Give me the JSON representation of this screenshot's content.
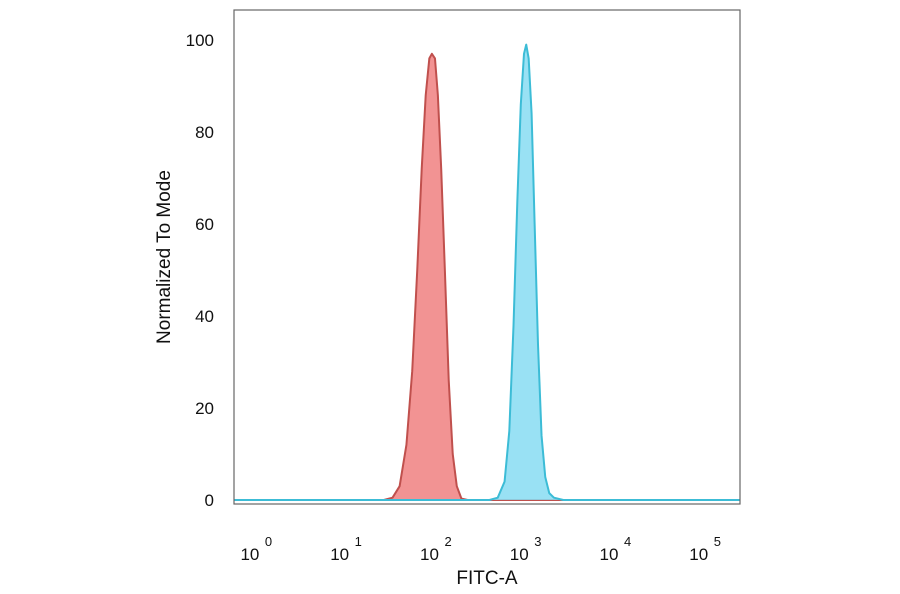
{
  "chart_data": {
    "type": "area",
    "xlabel": "FITC-A",
    "ylabel": "Normalized To Mode",
    "x_scale": "log",
    "xlim": [
      0.6,
      260000
    ],
    "ylim": [
      0,
      100
    ],
    "x_ticks": [
      {
        "base": "10",
        "exp": "0",
        "value": 1
      },
      {
        "base": "10",
        "exp": "1",
        "value": 10
      },
      {
        "base": "10",
        "exp": "2",
        "value": 100
      },
      {
        "base": "10",
        "exp": "3",
        "value": 1000
      },
      {
        "base": "10",
        "exp": "4",
        "value": 10000
      },
      {
        "base": "10",
        "exp": "5",
        "value": 100000
      }
    ],
    "y_ticks": [
      "0",
      "20",
      "40",
      "60",
      "80",
      "100"
    ],
    "grid": false,
    "series": [
      {
        "color": "#f08080",
        "stroke": "#c0504d",
        "points": [
          [
            0.6,
            0
          ],
          [
            28,
            0
          ],
          [
            35,
            0.5
          ],
          [
            42,
            3
          ],
          [
            50,
            12
          ],
          [
            58,
            28
          ],
          [
            66,
            50
          ],
          [
            74,
            72
          ],
          [
            82,
            88
          ],
          [
            90,
            96
          ],
          [
            96,
            97
          ],
          [
            104,
            96
          ],
          [
            112,
            88
          ],
          [
            122,
            72
          ],
          [
            134,
            50
          ],
          [
            148,
            26
          ],
          [
            164,
            10
          ],
          [
            182,
            3
          ],
          [
            205,
            0.3
          ],
          [
            240,
            0
          ],
          [
            260000,
            0
          ]
        ]
      },
      {
        "color": "#87dcf2",
        "stroke": "#3cbcd6",
        "points": [
          [
            0.6,
            0
          ],
          [
            420,
            0
          ],
          [
            520,
            0.5
          ],
          [
            620,
            4
          ],
          [
            700,
            15
          ],
          [
            780,
            38
          ],
          [
            860,
            65
          ],
          [
            940,
            86
          ],
          [
            1020,
            97
          ],
          [
            1080,
            99
          ],
          [
            1150,
            96
          ],
          [
            1240,
            84
          ],
          [
            1340,
            60
          ],
          [
            1460,
            34
          ],
          [
            1600,
            14
          ],
          [
            1760,
            5
          ],
          [
            1950,
            1.5
          ],
          [
            2200,
            0.5
          ],
          [
            2800,
            0
          ],
          [
            260000,
            0
          ]
        ]
      }
    ]
  }
}
